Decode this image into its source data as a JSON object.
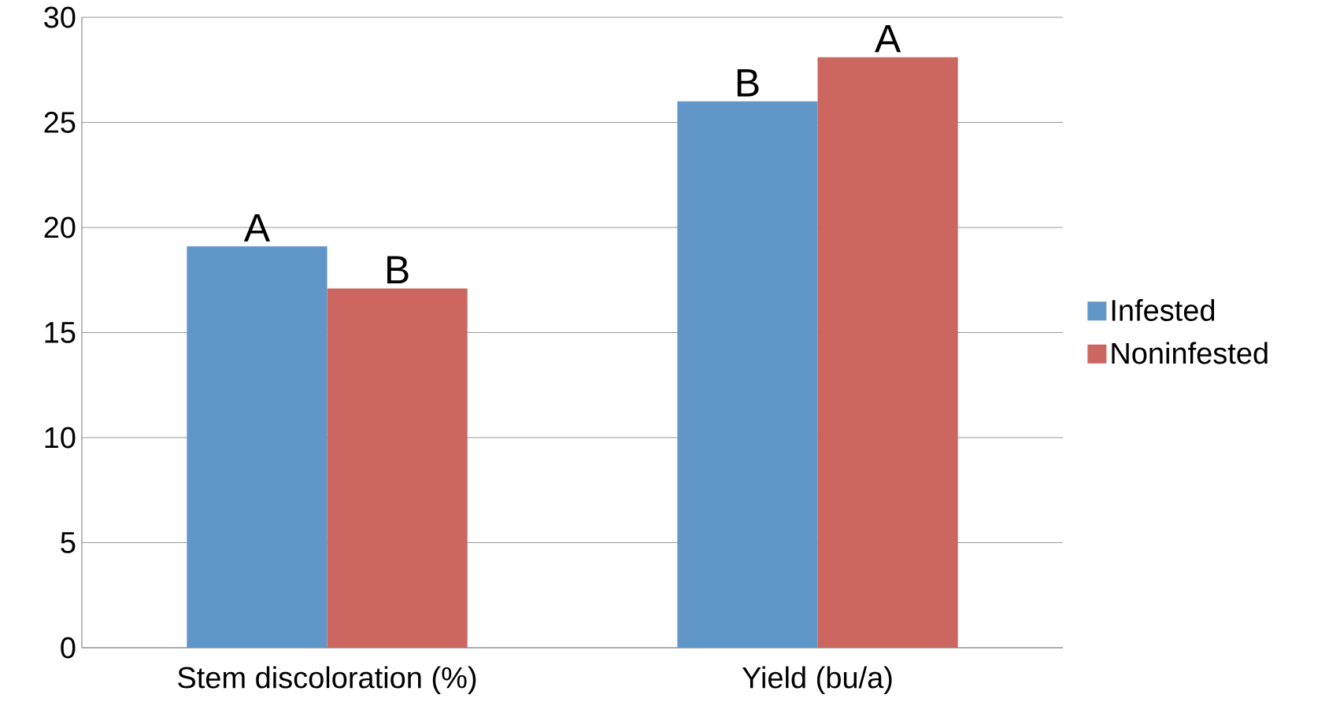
{
  "chart_data": {
    "type": "bar",
    "categories": [
      "Stem discoloration (%)",
      "Yield (bu/a)"
    ],
    "series": [
      {
        "name": "Infested",
        "color": "#6096c8",
        "values": [
          19.1,
          26.0
        ],
        "value_labels": [
          "A",
          "B"
        ]
      },
      {
        "name": "Noninfested",
        "color": "#cc6660",
        "values": [
          17.1,
          28.1
        ],
        "value_labels": [
          "B",
          "A"
        ]
      }
    ],
    "ylim": [
      0,
      30
    ],
    "yticks": [
      0,
      5,
      10,
      15,
      20,
      25,
      30
    ],
    "grid": "y",
    "legend": "right"
  }
}
